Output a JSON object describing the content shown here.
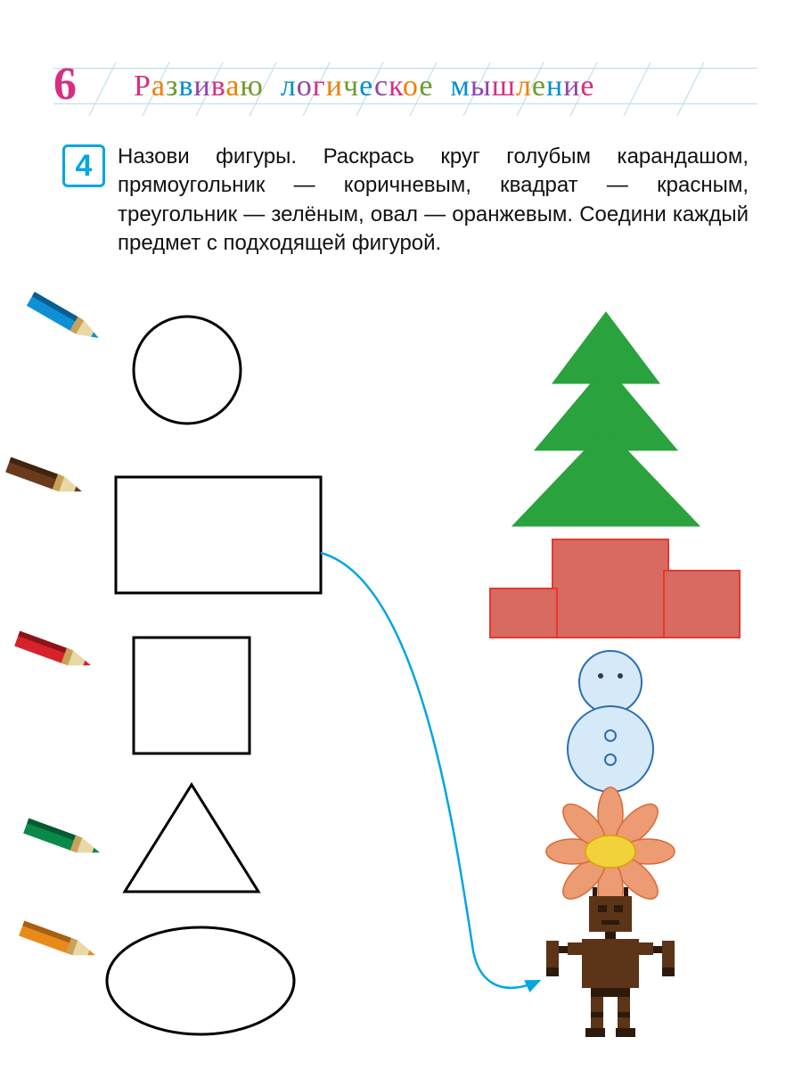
{
  "page_number": "6",
  "header": {
    "words": [
      {
        "text": "Развиваю",
        "colors": [
          "#d62f7f",
          "#ef7f00",
          "#6c9b2f",
          "#0090d0",
          "#8e44ad",
          "#d62f7f",
          "#ef7f00",
          "#6c9b2f"
        ]
      },
      {
        "text": "логическое",
        "colors": [
          "#0090d0",
          "#8e44ad",
          "#d62f7f",
          "#ef7f00",
          "#6c9b2f",
          "#0090d0",
          "#8e44ad",
          "#d62f7f",
          "#ef7f00",
          "#6c9b2f"
        ]
      },
      {
        "text": "мышление",
        "colors": [
          "#0090d0",
          "#8e44ad",
          "#d62f7f",
          "#ef7f00",
          "#6c9b2f",
          "#0090d0",
          "#8e44ad",
          "#d62f7f"
        ]
      }
    ],
    "slant_line_color": "#b9d9ee"
  },
  "task_number": "4",
  "instructions": "Назови фигуры. Раскрась круг голубым каранда­шом, прямоугольник — коричневым, квадрат — красным, треугольник — зелёным, овал — оран­жевым. Соедини каждый предмет с подходящей фигурой.",
  "pencils": {
    "blue": {
      "body": "#0f8fd6",
      "shade": "#0a5e8e",
      "ferrule": "#b08a4a"
    },
    "brown": {
      "body": "#6a3a1a",
      "shade": "#3f2410",
      "ferrule": "#b08a4a"
    },
    "red": {
      "body": "#d6222b",
      "shade": "#8a1419",
      "ferrule": "#b08a4a"
    },
    "green": {
      "body": "#0a8a4a",
      "shade": "#065a30",
      "ferrule": "#b08a4a"
    },
    "orange": {
      "body": "#e88a1a",
      "shade": "#a85f10",
      "ferrule": "#b08a4a"
    }
  },
  "shapes_outline_color": "#000000",
  "tree": {
    "fill": "#2aa23e",
    "stroke": "#2aa23e"
  },
  "podium": {
    "fill": "#d86a62",
    "stroke": "#e23a2e"
  },
  "snowman": {
    "fill": "#d6e9f8",
    "stroke": "#2b6fb0",
    "dot": "#2b3a5a"
  },
  "flower": {
    "petal": "#ec9b72",
    "petal_stroke": "#d66a3a",
    "center": "#f2d23a",
    "center_stroke": "#d9a500"
  },
  "robot": {
    "body": "#5c3417",
    "dark": "#2d1a0b",
    "joint": "#2d1a0b"
  },
  "connection": {
    "color": "#00a6e0",
    "width": 2.5
  }
}
